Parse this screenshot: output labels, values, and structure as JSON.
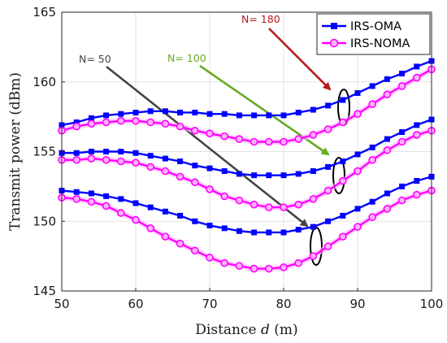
{
  "chart_data": {
    "type": "line",
    "title": "",
    "xlabel": "Distance d (m)",
    "ylabel": "Transmit power (dBm)",
    "xlim": [
      50,
      100
    ],
    "ylim": [
      145,
      165
    ],
    "xticks": [
      50,
      60,
      70,
      80,
      90,
      100
    ],
    "yticks": [
      145,
      150,
      155,
      160,
      165
    ],
    "grid": true,
    "legend": {
      "placement": "top-right",
      "entries": [
        {
          "name": "IRS-OMA",
          "color": "#0000ff",
          "marker": "square"
        },
        {
          "name": "IRS-NOMA",
          "color": "#ff00ff",
          "marker": "circle"
        }
      ]
    },
    "x": [
      50,
      52,
      54,
      56,
      58,
      60,
      62,
      64,
      66,
      68,
      70,
      72,
      74,
      76,
      78,
      80,
      82,
      84,
      86,
      88,
      90,
      92,
      94,
      96,
      98,
      100
    ],
    "series": [
      {
        "name": "IRS-OMA",
        "group": "N= 180",
        "color": "#0000ff",
        "marker": "square",
        "values": [
          156.9,
          157.1,
          157.4,
          157.6,
          157.7,
          157.8,
          157.9,
          157.9,
          157.8,
          157.8,
          157.7,
          157.7,
          157.6,
          157.6,
          157.6,
          157.6,
          157.8,
          158.0,
          158.3,
          158.7,
          159.2,
          159.7,
          160.2,
          160.6,
          161.1,
          161.5
        ]
      },
      {
        "name": "IRS-NOMA",
        "group": "N= 180",
        "color": "#ff00ff",
        "marker": "circle",
        "values": [
          156.5,
          156.8,
          157.0,
          157.1,
          157.2,
          157.2,
          157.1,
          157.0,
          156.8,
          156.5,
          156.3,
          156.1,
          155.9,
          155.7,
          155.7,
          155.7,
          155.9,
          156.2,
          156.6,
          157.1,
          157.7,
          158.4,
          159.1,
          159.7,
          160.3,
          160.9
        ]
      },
      {
        "name": "IRS-OMA",
        "group": "N= 100",
        "color": "#0000ff",
        "marker": "square",
        "values": [
          154.9,
          154.9,
          155.0,
          155.0,
          155.0,
          154.9,
          154.7,
          154.5,
          154.3,
          154.0,
          153.8,
          153.6,
          153.4,
          153.3,
          153.3,
          153.3,
          153.4,
          153.6,
          153.9,
          154.3,
          154.8,
          155.3,
          155.9,
          156.4,
          156.9,
          157.3
        ]
      },
      {
        "name": "IRS-NOMA",
        "group": "N= 100",
        "color": "#ff00ff",
        "marker": "circle",
        "values": [
          154.4,
          154.4,
          154.5,
          154.4,
          154.3,
          154.2,
          153.9,
          153.6,
          153.2,
          152.8,
          152.3,
          151.8,
          151.5,
          151.2,
          151.0,
          151.0,
          151.2,
          151.6,
          152.2,
          152.9,
          153.6,
          154.4,
          155.1,
          155.7,
          156.2,
          156.5
        ]
      },
      {
        "name": "IRS-OMA",
        "group": "N= 50",
        "color": "#0000ff",
        "marker": "square",
        "values": [
          152.2,
          152.1,
          152.0,
          151.8,
          151.6,
          151.3,
          151.0,
          150.7,
          150.4,
          150.0,
          149.7,
          149.5,
          149.3,
          149.2,
          149.2,
          149.2,
          149.4,
          149.6,
          150.0,
          150.4,
          150.9,
          151.4,
          152.0,
          152.5,
          152.9,
          153.2
        ]
      },
      {
        "name": "IRS-NOMA",
        "group": "N= 50",
        "color": "#ff00ff",
        "marker": "circle",
        "values": [
          151.7,
          151.6,
          151.4,
          151.1,
          150.6,
          150.1,
          149.5,
          148.9,
          148.4,
          147.9,
          147.4,
          147.0,
          146.8,
          146.6,
          146.6,
          146.7,
          147.0,
          147.5,
          148.2,
          148.9,
          149.6,
          150.3,
          150.9,
          151.5,
          151.9,
          152.2
        ]
      }
    ],
    "annotations": [
      {
        "text": "N= 50",
        "color": "#444444"
      },
      {
        "text": "N= 100",
        "color": "#66aa22"
      },
      {
        "text": "N= 180",
        "color": "#b51a1a"
      }
    ]
  }
}
